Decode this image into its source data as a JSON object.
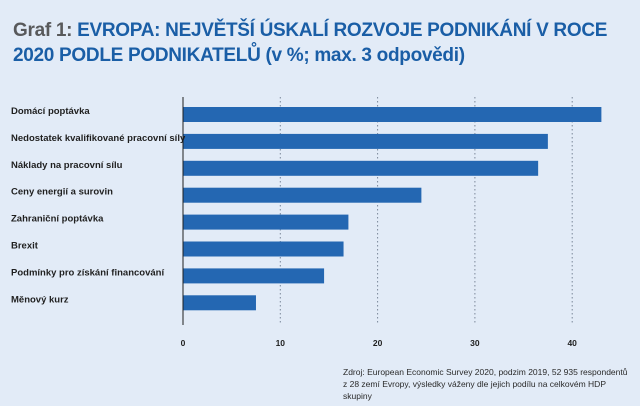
{
  "title": {
    "prefix": "Graf 1:",
    "text": "EVROPA: NEJVĚTŠÍ ÚSKALÍ ROZVOJE PODNIKÁNÍ V ROCE 2020 PODLE PODNIKATELŮ (v %; max. 3 odpovědi)"
  },
  "source": {
    "line1": "Zdroj: European Economic Survey 2020, podzim 2019, 52 935 respondentů",
    "line2": "z 28 zemí Evropy, výsledky váženy dle jejich podílu na celkovém HDP skupiny"
  },
  "colors": {
    "bar": "#2467b2",
    "grid": "#7a8799",
    "axis": "#1f1f1f"
  },
  "chart_data": {
    "type": "bar",
    "orientation": "horizontal",
    "categories": [
      "Domácí poptávka",
      "Nedostatek kvalifikované pracovní síly",
      "Náklady na pracovní sílu",
      "Ceny energií a surovin",
      "Zahraniční poptávka",
      "Brexit",
      "Podmínky pro získání financování",
      "Měnový kurz"
    ],
    "values": [
      43,
      37.5,
      36.5,
      24.5,
      17,
      16.5,
      14.5,
      7.5
    ],
    "xticks": [
      0,
      10,
      20,
      30,
      40
    ],
    "xlim": [
      0,
      44
    ],
    "grid": "vertical-dotted",
    "legend": "none"
  }
}
